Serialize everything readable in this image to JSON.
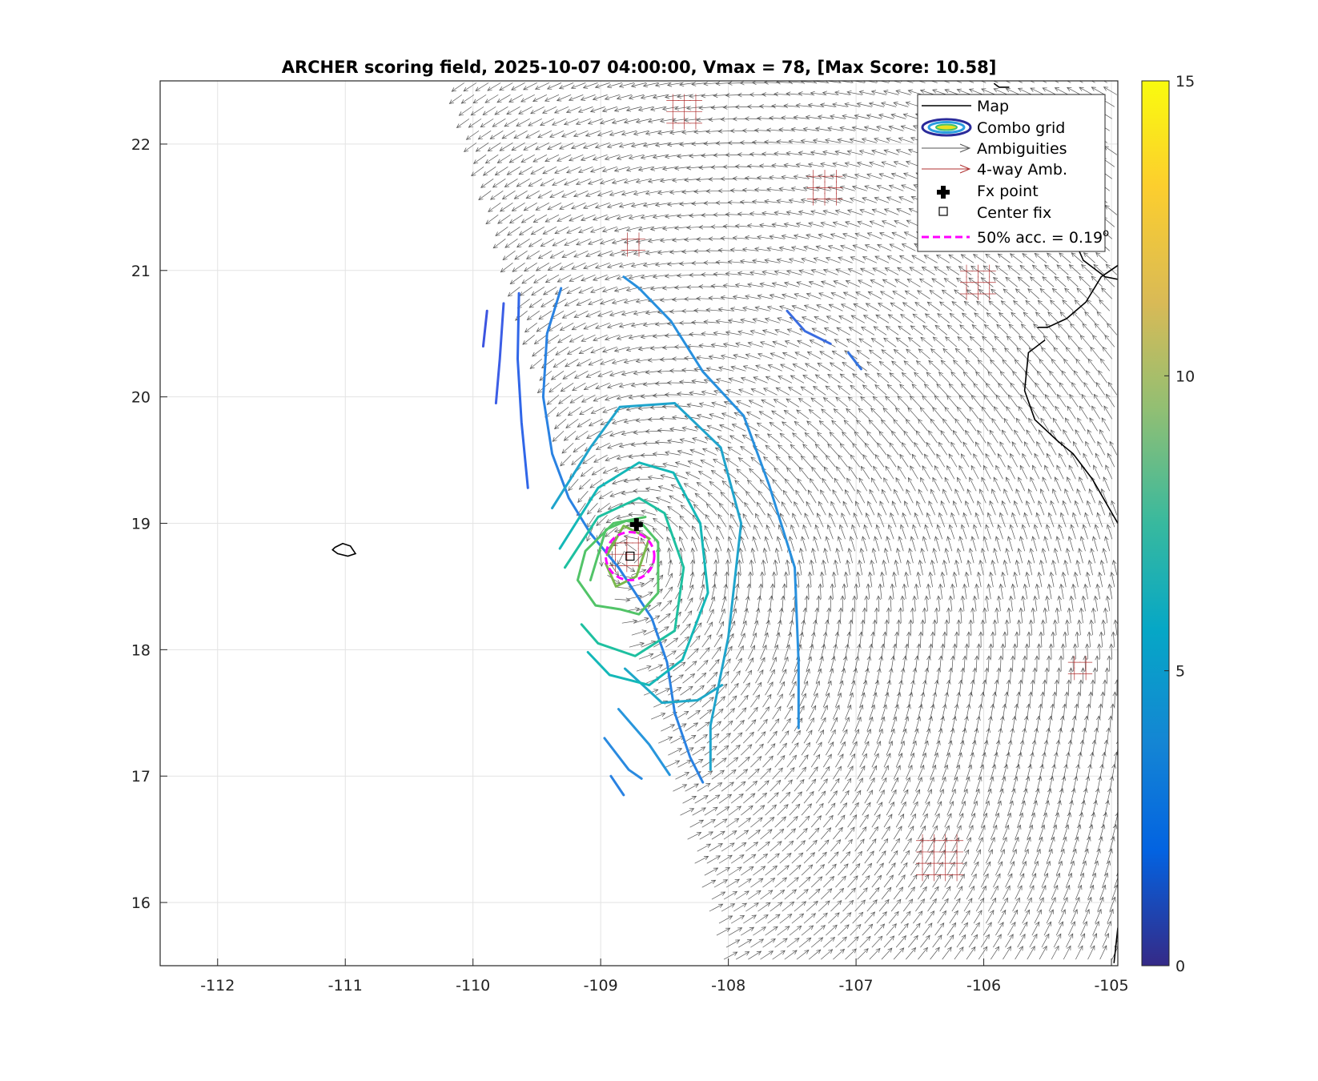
{
  "chart_data": {
    "type": "contour-quiver-map",
    "title": "ARCHER scoring field, 2025-10-07 04:00:00, Vmax = 78, [Max Score: 10.58]",
    "xlim": [
      -112.45,
      -104.95
    ],
    "ylim": [
      15.5,
      22.5
    ],
    "x_ticks": [
      -112,
      -111,
      -110,
      -109,
      -108,
      -107,
      -106,
      -105
    ],
    "x_tick_labels": [
      "-112",
      "-111",
      "-110",
      "-109",
      "-108",
      "-107",
      "-106",
      "-105"
    ],
    "y_ticks": [
      16,
      17,
      18,
      19,
      20,
      21,
      22
    ],
    "y_tick_labels": [
      "16",
      "17",
      "18",
      "19",
      "20",
      "21",
      "22"
    ],
    "grid": true,
    "legend_position": "top-right",
    "legend": [
      {
        "label": "Map",
        "symbol": "line",
        "color": "#000000"
      },
      {
        "label": "Combo grid",
        "symbol": "contour-ellipse",
        "color": "#2a2a9a"
      },
      {
        "label": "Ambiguities",
        "symbol": "arrow",
        "color": "#555555"
      },
      {
        "label": "4-way Amb.",
        "symbol": "arrow",
        "color": "#b03030"
      },
      {
        "label": "Fx point",
        "symbol": "plus",
        "color": "#000000"
      },
      {
        "label": "Center fix",
        "symbol": "square",
        "color": "#000000"
      },
      {
        "label": "50% acc. = 0.19",
        "superscript": "o",
        "symbol": "dashed",
        "color": "#ff00ff"
      }
    ],
    "fx_point": {
      "lon": -108.72,
      "lat": 18.99
    },
    "center_fix": {
      "lon": -108.77,
      "lat": 18.74
    },
    "accuracy_radius_deg": 0.19,
    "colorbar": {
      "min": 0,
      "max": 15,
      "ticks": [
        0,
        5,
        10,
        15
      ],
      "tick_labels": [
        "0",
        "5",
        "10",
        "15"
      ]
    },
    "max_score": 10.58,
    "contours": [
      {
        "level": 3.5,
        "color": "#3c54e0",
        "points": [
          [
            -109.89,
            20.68
          ],
          [
            -109.92,
            20.4
          ]
        ]
      },
      {
        "level": 3.8,
        "color": "#3c5ee6",
        "points": [
          [
            -109.76,
            20.74
          ],
          [
            -109.79,
            20.3
          ],
          [
            -109.82,
            19.95
          ]
        ]
      },
      {
        "level": 4.1,
        "color": "#3066e8",
        "points": [
          [
            -109.64,
            20.82
          ],
          [
            -109.65,
            20.3
          ],
          [
            -109.62,
            19.8
          ],
          [
            -109.57,
            19.28
          ]
        ]
      },
      {
        "level": 5.0,
        "color": "#2a82e2",
        "points": [
          [
            -109.31,
            20.86
          ],
          [
            -109.42,
            20.5
          ],
          [
            -109.45,
            20.0
          ],
          [
            -109.38,
            19.55
          ],
          [
            -109.25,
            19.2
          ],
          [
            -109.08,
            18.92
          ],
          [
            -108.86,
            18.65
          ],
          [
            -108.6,
            18.25
          ],
          [
            -108.48,
            17.9
          ],
          [
            -108.42,
            17.5
          ],
          [
            -108.3,
            17.15
          ],
          [
            -108.2,
            16.95
          ]
        ]
      },
      {
        "level": 5.6,
        "color": "#2896dc",
        "points": [
          [
            -108.86,
            17.53
          ],
          [
            -108.62,
            17.25
          ],
          [
            -108.46,
            17.01
          ]
        ]
      },
      {
        "level": 5.2,
        "color": "#2a8ae0",
        "points": [
          [
            -108.97,
            17.3
          ],
          [
            -108.78,
            17.05
          ],
          [
            -108.68,
            16.98
          ]
        ]
      },
      {
        "level": 5.0,
        "color": "#2a82e2",
        "points": [
          [
            -108.92,
            17.0
          ],
          [
            -108.82,
            16.85
          ]
        ]
      },
      {
        "level": 5.4,
        "color": "#2890de",
        "points": [
          [
            -108.82,
            20.95
          ],
          [
            -108.7,
            20.86
          ],
          [
            -108.45,
            20.6
          ],
          [
            -108.2,
            20.2
          ],
          [
            -107.88,
            19.85
          ],
          [
            -107.68,
            19.3
          ],
          [
            -107.48,
            18.65
          ],
          [
            -107.45,
            17.9
          ],
          [
            -107.45,
            17.38
          ]
        ]
      },
      {
        "level": 4.3,
        "color": "#3a6ce0",
        "points": [
          [
            -107.54,
            20.68
          ],
          [
            -107.4,
            20.52
          ],
          [
            -107.2,
            20.42
          ]
        ]
      },
      {
        "level": 4.6,
        "color": "#3474e0",
        "points": [
          [
            -107.06,
            20.35
          ],
          [
            -106.96,
            20.22
          ]
        ]
      },
      {
        "level": 6.3,
        "color": "#1fa4cc",
        "points": [
          [
            -109.38,
            19.12
          ],
          [
            -109.08,
            19.6
          ],
          [
            -108.85,
            19.92
          ],
          [
            -108.42,
            19.95
          ],
          [
            -108.06,
            19.6
          ],
          [
            -107.9,
            19.0
          ],
          [
            -108.0,
            18.1
          ],
          [
            -108.14,
            17.4
          ],
          [
            -108.14,
            17.05
          ]
        ]
      },
      {
        "level": 6.4,
        "color": "#1fa8c8",
        "points": [
          [
            -108.81,
            17.85
          ],
          [
            -108.52,
            17.58
          ],
          [
            -108.24,
            17.6
          ],
          [
            -108.05,
            17.72
          ]
        ]
      },
      {
        "level": 7.2,
        "color": "#14b8b8",
        "points": [
          [
            -109.32,
            18.8
          ],
          [
            -109.02,
            19.28
          ],
          [
            -108.7,
            19.48
          ],
          [
            -108.43,
            19.4
          ],
          [
            -108.22,
            19.0
          ],
          [
            -108.16,
            18.45
          ],
          [
            -108.36,
            17.92
          ],
          [
            -108.62,
            17.72
          ],
          [
            -108.93,
            17.8
          ],
          [
            -109.1,
            17.98
          ]
        ]
      },
      {
        "level": 8.0,
        "color": "#1ec0a0",
        "points": [
          [
            -109.28,
            18.65
          ],
          [
            -109.02,
            19.05
          ],
          [
            -108.7,
            19.2
          ],
          [
            -108.5,
            19.08
          ],
          [
            -108.35,
            18.65
          ],
          [
            -108.42,
            18.15
          ],
          [
            -108.73,
            17.95
          ],
          [
            -109.02,
            18.05
          ],
          [
            -109.15,
            18.2
          ]
        ]
      },
      {
        "level": 9.0,
        "color": "#52c468",
        "points": [
          [
            -109.08,
            18.55
          ],
          [
            -108.96,
            18.95
          ],
          [
            -108.8,
            19.02
          ],
          [
            -108.68,
            19.0
          ],
          [
            -108.55,
            18.85
          ],
          [
            -108.55,
            18.45
          ],
          [
            -108.7,
            18.28
          ],
          [
            -108.85,
            18.32
          ],
          [
            -109.04,
            18.35
          ],
          [
            -109.18,
            18.55
          ],
          [
            -109.12,
            18.78
          ],
          [
            -108.9,
            19.0
          ],
          [
            -108.65,
            19.05
          ]
        ]
      },
      {
        "level": 10.0,
        "color": "#7ab84c",
        "points": [
          [
            -108.95,
            18.75
          ],
          [
            -108.82,
            18.98
          ],
          [
            -108.62,
            18.88
          ],
          [
            -108.72,
            18.58
          ],
          [
            -108.88,
            18.5
          ],
          [
            -108.96,
            18.68
          ]
        ]
      }
    ],
    "coastline": [
      {
        "points": [
          [
            -111.08,
            18.81
          ],
          [
            -111.02,
            18.84
          ],
          [
            -110.96,
            18.82
          ],
          [
            -110.92,
            18.76
          ],
          [
            -110.98,
            18.74
          ],
          [
            -111.06,
            18.76
          ],
          [
            -111.1,
            18.79
          ],
          [
            -111.08,
            18.81
          ]
        ]
      },
      {
        "points": [
          [
            -105.92,
            22.48
          ],
          [
            -105.88,
            22.45
          ],
          [
            -105.8,
            22.45
          ]
        ]
      },
      {
        "points": [
          [
            -106.35,
            21.85
          ],
          [
            -106.25,
            21.83
          ],
          [
            -106.15,
            21.72
          ],
          [
            -106.12,
            21.52
          ],
          [
            -106.02,
            21.52
          ],
          [
            -105.92,
            21.7
          ],
          [
            -105.83,
            21.85
          ],
          [
            -105.7,
            21.84
          ],
          [
            -105.55,
            21.75
          ],
          [
            -105.45,
            21.6
          ],
          [
            -105.33,
            21.33
          ],
          [
            -105.22,
            21.08
          ],
          [
            -105.05,
            20.95
          ],
          [
            -104.95,
            20.93
          ]
        ]
      },
      {
        "points": [
          [
            -104.95,
            21.04
          ],
          [
            -105.08,
            20.95
          ],
          [
            -105.2,
            20.75
          ],
          [
            -105.35,
            20.62
          ],
          [
            -105.5,
            20.55
          ],
          [
            -105.58,
            20.55
          ]
        ]
      },
      {
        "points": [
          [
            -105.52,
            20.45
          ],
          [
            -105.65,
            20.35
          ],
          [
            -105.68,
            20.05
          ],
          [
            -105.6,
            19.82
          ],
          [
            -105.42,
            19.65
          ],
          [
            -105.3,
            19.55
          ],
          [
            -105.15,
            19.35
          ],
          [
            -104.95,
            19.0
          ]
        ]
      },
      {
        "points": [
          [
            -104.95,
            15.8
          ],
          [
            -104.98,
            15.52
          ]
        ]
      }
    ]
  }
}
